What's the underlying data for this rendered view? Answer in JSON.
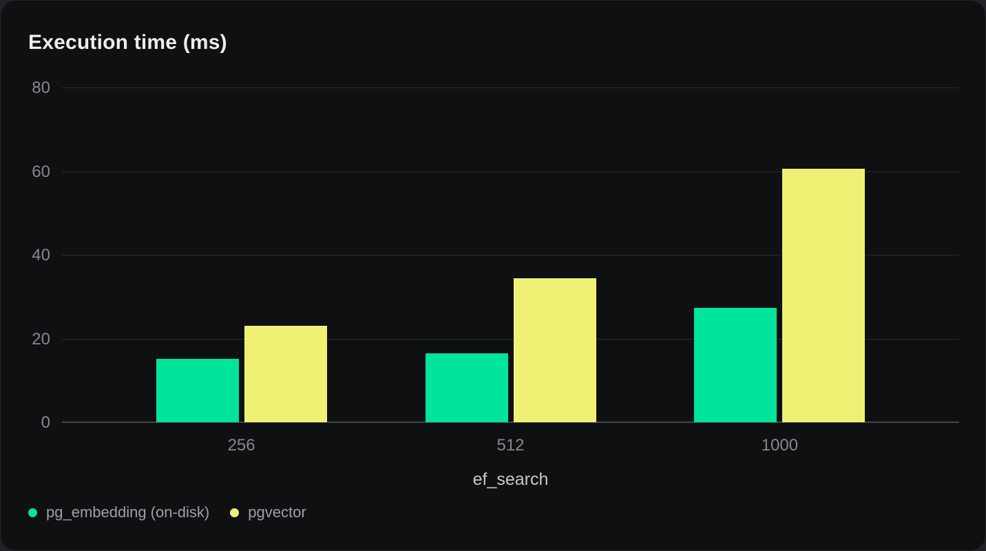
{
  "title": "Execution time (ms)",
  "xlabel": "ef_search",
  "legend": [
    {
      "label": "pg_embedding (on-disk)",
      "color": "#00e59b"
    },
    {
      "label": "pgvector",
      "color": "#eff175"
    }
  ],
  "colors": {
    "card_background": "#0f1011",
    "page_background": "#212226",
    "title_text": "#ebedee",
    "tick_text": "#85888d",
    "axis_label_text": "#c6c8cb",
    "legend_text": "#9da1a6",
    "gridline": "#2a2c2e",
    "zero_line": "#45474b",
    "series_green": "#00e59b",
    "series_yellow": "#eff175"
  },
  "chart_data": {
    "type": "bar",
    "title": "Execution time (ms)",
    "xlabel": "ef_search",
    "ylabel": "",
    "categories": [
      "256",
      "512",
      "1000"
    ],
    "series": [
      {
        "name": "pg_embedding (on-disk)",
        "color": "#00e59b",
        "values": [
          15.1,
          16.4,
          27.4
        ]
      },
      {
        "name": "pgvector",
        "color": "#eff175",
        "values": [
          23.1,
          34.4,
          60.5
        ]
      }
    ],
    "ylim": [
      0,
      80
    ],
    "yticks": [
      0,
      20,
      40,
      60,
      80
    ],
    "grid": true,
    "legend_position": "bottom-left",
    "group_centers_pct": [
      20,
      50,
      80
    ]
  }
}
